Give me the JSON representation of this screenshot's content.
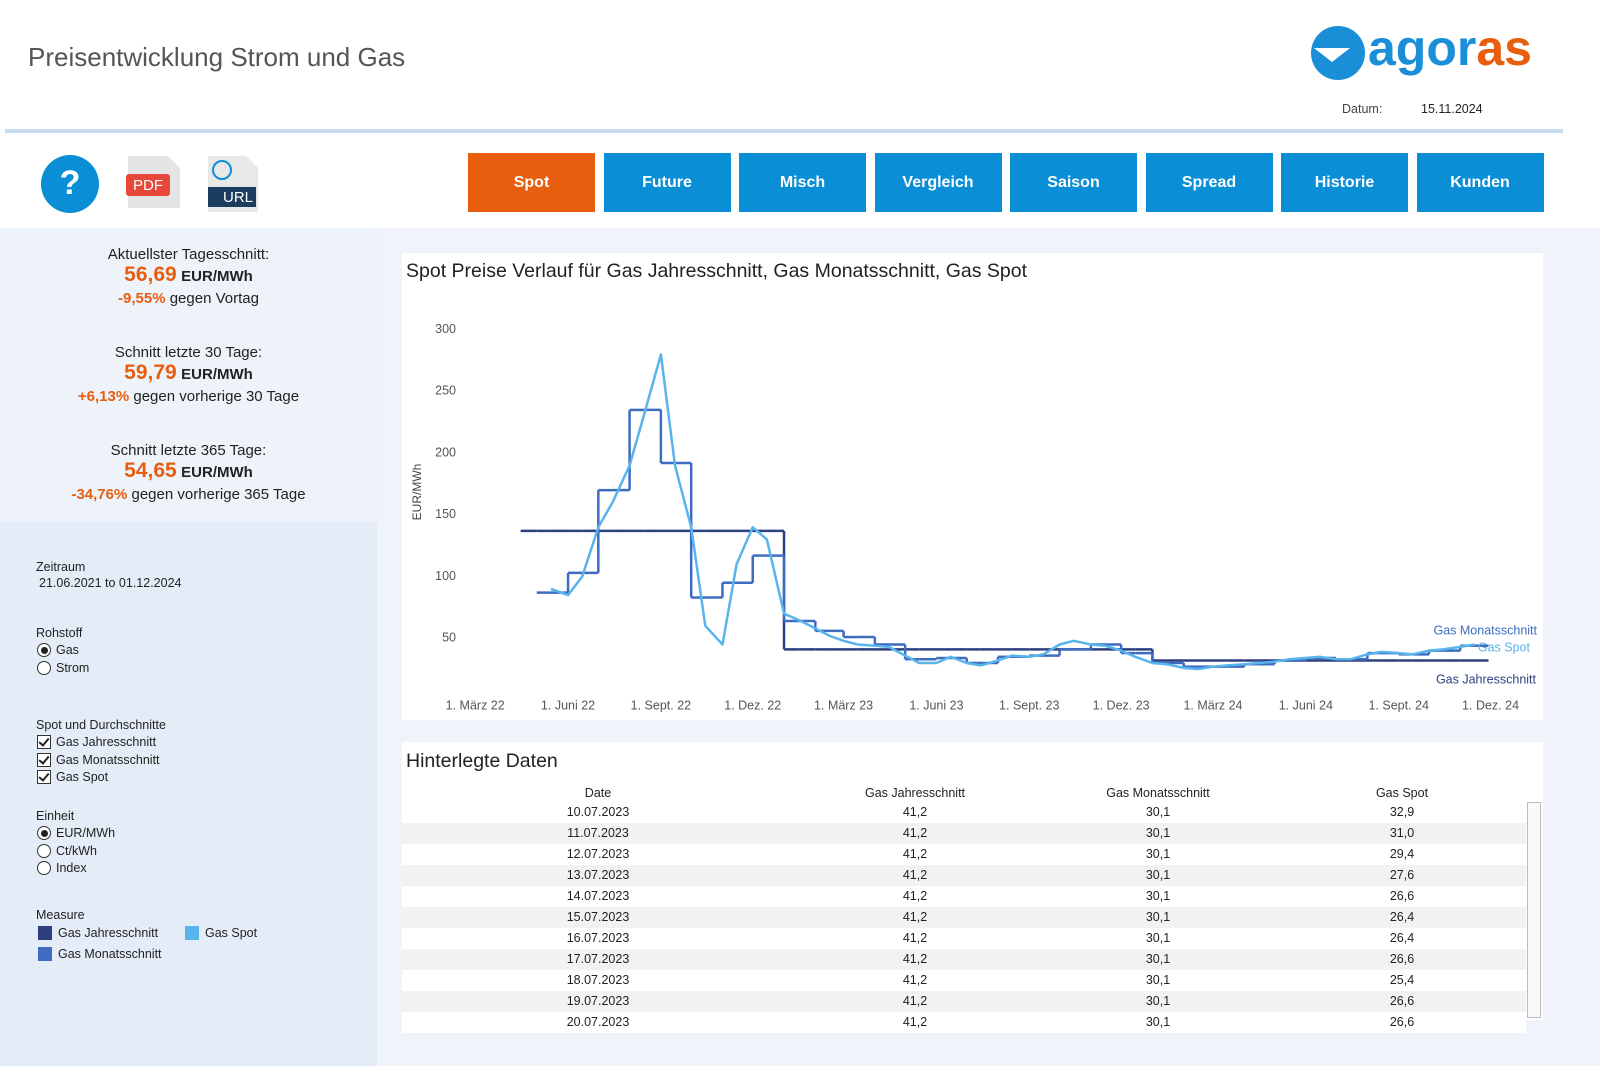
{
  "header": {
    "title": "Preisentwicklung Strom und Gas",
    "logo": {
      "part1": "agor",
      "part2": "as"
    },
    "date_label": "Datum:",
    "date_value": "15.11.2024"
  },
  "toolbar": {
    "help": "?",
    "pdf": "PDF",
    "url": "URL"
  },
  "nav": [
    {
      "label": "Spot",
      "selected": true
    },
    {
      "label": "Future",
      "selected": false
    },
    {
      "label": "Misch",
      "selected": false
    },
    {
      "label": "Vergleich",
      "selected": false
    },
    {
      "label": "Saison",
      "selected": false
    },
    {
      "label": "Spread",
      "selected": false
    },
    {
      "label": "Historie",
      "selected": false
    },
    {
      "label": "Kunden",
      "selected": false
    }
  ],
  "stats": [
    {
      "label": "Aktuellster Tagesschnitt:",
      "value": "56,69",
      "unit": "EUR/MWh",
      "change": "-9,55%",
      "change_text": "gegen Vortag"
    },
    {
      "label": "Schnitt letzte 30 Tage:",
      "value": "59,79",
      "unit": "EUR/MWh",
      "change": "+6,13%",
      "change_text": "gegen vorherige 30 Tage"
    },
    {
      "label": "Schnitt letzte 365 Tage:",
      "value": "54,65",
      "unit": "EUR/MWh",
      "change": "-34,76%",
      "change_text": "gegen vorherige 365 Tage"
    }
  ],
  "filters": {
    "zeitraum": {
      "label": "Zeitraum",
      "value": "21.06.2021 to 01.12.2024"
    },
    "rohstoff": {
      "label": "Rohstoff",
      "kind": "radio",
      "options": [
        {
          "label": "Gas",
          "selected": true
        },
        {
          "label": "Strom",
          "selected": false
        }
      ]
    },
    "durchschnitte": {
      "label": "Spot und Durchschnitte",
      "kind": "checkbox",
      "options": [
        {
          "label": "Gas Jahresschnitt",
          "selected": true
        },
        {
          "label": "Gas Monatsschnitt",
          "selected": true
        },
        {
          "label": "Gas Spot",
          "selected": true
        }
      ]
    },
    "einheit": {
      "label": "Einheit",
      "kind": "radio",
      "options": [
        {
          "label": "EUR/MWh",
          "selected": true
        },
        {
          "label": "Ct/kWh",
          "selected": false
        },
        {
          "label": "Index",
          "selected": false
        }
      ]
    },
    "measure": {
      "label": "Measure"
    }
  },
  "chart_data": {
    "type": "line",
    "title": "Spot Preise Verlauf für Gas Jahresschnitt, Gas Monatsschnitt, Gas Spot",
    "y_label": "EUR/MWh",
    "x": [
      "2022-04-15",
      "2022-05-01",
      "2022-05-15",
      "2022-06-01",
      "2022-06-15",
      "2022-07-01",
      "2022-07-15",
      "2022-08-01",
      "2022-08-15",
      "2022-09-01",
      "2022-09-15",
      "2022-10-01",
      "2022-10-15",
      "2022-11-01",
      "2022-11-15",
      "2022-12-01",
      "2022-12-15",
      "2023-01-01",
      "2023-01-15",
      "2023-02-01",
      "2023-02-15",
      "2023-03-01",
      "2023-03-15",
      "2023-04-01",
      "2023-04-15",
      "2023-05-01",
      "2023-05-15",
      "2023-06-01",
      "2023-06-15",
      "2023-07-01",
      "2023-07-15",
      "2023-08-01",
      "2023-08-15",
      "2023-09-01",
      "2023-09-15",
      "2023-10-01",
      "2023-10-15",
      "2023-11-01",
      "2023-11-15",
      "2023-12-01",
      "2023-12-15",
      "2024-01-01",
      "2024-01-15",
      "2024-02-01",
      "2024-02-15",
      "2024-03-01",
      "2024-03-15",
      "2024-04-01",
      "2024-04-15",
      "2024-05-01",
      "2024-05-15",
      "2024-06-01",
      "2024-06-15",
      "2024-07-01",
      "2024-07-15",
      "2024-08-01",
      "2024-08-15",
      "2024-09-01",
      "2024-09-15",
      "2024-10-01",
      "2024-10-15",
      "2024-11-01",
      "2024-11-15"
    ],
    "xlim": [
      "2022-02-09",
      "2025-01-19"
    ],
    "xticks": [
      {
        "value": "2022-03-01",
        "label": "1. März 22"
      },
      {
        "value": "2022-06-01",
        "label": "1. Juni 22"
      },
      {
        "value": "2022-09-01",
        "label": "1. Sept. 22"
      },
      {
        "value": "2022-12-01",
        "label": "1. Dez. 22"
      },
      {
        "value": "2023-03-01",
        "label": "1. März 23"
      },
      {
        "value": "2023-06-01",
        "label": "1. Juni 23"
      },
      {
        "value": "2023-09-01",
        "label": "1. Sept. 23"
      },
      {
        "value": "2023-12-01",
        "label": "1. Dez. 23"
      },
      {
        "value": "2024-03-01",
        "label": "1. März 24"
      },
      {
        "value": "2024-06-01",
        "label": "1. Juni 24"
      },
      {
        "value": "2024-09-01",
        "label": "1. Sept. 24"
      },
      {
        "value": "2024-12-01",
        "label": "1. Dez. 24"
      }
    ],
    "ylim": [
      0,
      320
    ],
    "yticks": [
      50,
      100,
      150,
      200,
      250,
      300
    ],
    "grid": false,
    "series": [
      {
        "name": "Gas Jahresschnitt",
        "color": "#2e3f80",
        "step": true,
        "values": [
          137,
          137,
          137,
          137,
          137,
          137,
          137,
          137,
          137,
          137,
          137,
          137,
          137,
          137,
          137,
          137,
          137,
          41,
          41,
          41,
          41,
          41,
          41,
          41,
          41,
          41,
          41,
          41,
          41,
          41,
          41,
          41,
          41,
          41,
          41,
          41,
          41,
          41,
          41,
          41,
          41,
          32,
          32,
          32,
          32,
          32,
          32,
          32,
          32,
          32,
          32,
          32,
          32,
          32,
          32,
          32,
          32,
          32,
          32,
          32,
          32,
          32,
          32
        ]
      },
      {
        "name": "Gas Monatsschnitt",
        "color": "#3d6cc0",
        "step": true,
        "values": [
          null,
          87,
          87,
          103,
          103,
          170,
          170,
          235,
          235,
          192,
          192,
          83,
          83,
          95,
          95,
          117,
          117,
          64,
          64,
          56,
          56,
          51,
          51,
          45,
          45,
          33,
          33,
          34,
          34,
          30,
          30,
          35,
          35,
          36,
          36,
          41,
          41,
          45,
          45,
          38,
          38,
          30,
          30,
          27,
          27,
          27,
          27,
          29,
          29,
          32,
          32,
          34,
          34,
          33,
          33,
          38,
          38,
          37,
          37,
          40,
          40,
          44,
          44
        ]
      },
      {
        "name": "Gas Spot",
        "color": "#5ab4ec",
        "step": false,
        "values": [
          null,
          null,
          90,
          85,
          100,
          140,
          160,
          190,
          230,
          280,
          190,
          140,
          60,
          45,
          110,
          140,
          130,
          70,
          65,
          58,
          52,
          48,
          45,
          44,
          43,
          36,
          30,
          30,
          35,
          30,
          28,
          32,
          36,
          35,
          37,
          45,
          48,
          45,
          44,
          40,
          35,
          30,
          29,
          26,
          25,
          27,
          28,
          29,
          30,
          31,
          33,
          34,
          35,
          33,
          33,
          37,
          39,
          38,
          37,
          40,
          41,
          43,
          45
        ]
      }
    ]
  },
  "table": {
    "title": "Hinterlegte Daten",
    "columns": [
      "Date",
      "Gas Jahresschnitt",
      "Gas Monatsschnitt",
      "Gas Spot"
    ],
    "rows": [
      [
        "10.07.2023",
        "41,2",
        "30,1",
        "32,9"
      ],
      [
        "11.07.2023",
        "41,2",
        "30,1",
        "31,0"
      ],
      [
        "12.07.2023",
        "41,2",
        "30,1",
        "29,4"
      ],
      [
        "13.07.2023",
        "41,2",
        "30,1",
        "27,6"
      ],
      [
        "14.07.2023",
        "41,2",
        "30,1",
        "26,6"
      ],
      [
        "15.07.2023",
        "41,2",
        "30,1",
        "26,4"
      ],
      [
        "16.07.2023",
        "41,2",
        "30,1",
        "26,4"
      ],
      [
        "17.07.2023",
        "41,2",
        "30,1",
        "26,6"
      ],
      [
        "18.07.2023",
        "41,2",
        "30,1",
        "25,4"
      ],
      [
        "19.07.2023",
        "41,2",
        "30,1",
        "26,6"
      ],
      [
        "20.07.2023",
        "41,2",
        "30,1",
        "26,6"
      ]
    ]
  }
}
